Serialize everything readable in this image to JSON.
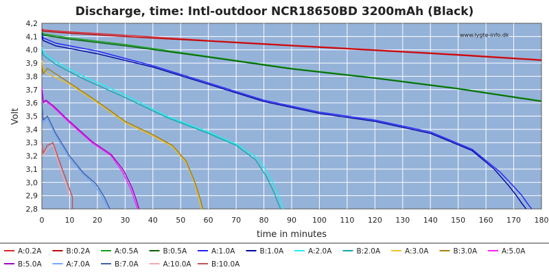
{
  "chart_data": {
    "type": "line",
    "title": "Discharge, time: Intl-outdoor NCR18650BD 3200mAh (Black)",
    "xlabel": "time in minutes",
    "ylabel": "Volt",
    "watermark": "www.lygte-info.dk",
    "xlim": [
      0,
      180
    ],
    "ylim": [
      2.8,
      4.2
    ],
    "xticks": [
      0,
      10,
      20,
      30,
      40,
      50,
      60,
      70,
      80,
      90,
      100,
      110,
      120,
      130,
      140,
      150,
      160,
      170,
      180
    ],
    "yticks": [
      2.8,
      2.9,
      3.0,
      3.1,
      3.2,
      3.3,
      3.4,
      3.5,
      3.6,
      3.7,
      3.8,
      3.9,
      4.0,
      4.1,
      4.2
    ],
    "ytick_labels": [
      "2,8",
      "2,9",
      "3,0",
      "3,1",
      "3,2",
      "3,3",
      "3,4",
      "3,5",
      "3,6",
      "3,7",
      "3,8",
      "3,9",
      "4,0",
      "4,1",
      "4,2"
    ],
    "grid": true,
    "plot_background": "#95b2d9",
    "legend_position": "bottom",
    "series": [
      {
        "name": "A:0.2A",
        "color": "#e02020",
        "x": [
          0,
          0.5,
          10,
          30,
          60,
          90,
          120,
          150,
          180
        ],
        "y": [
          4.16,
          4.15,
          4.135,
          4.11,
          4.07,
          4.035,
          4.0,
          3.965,
          3.925
        ]
      },
      {
        "name": "B:0.2A",
        "color": "#c00000",
        "x": [
          0,
          0.5,
          10,
          30,
          60,
          90,
          120,
          150,
          180
        ],
        "y": [
          4.15,
          4.14,
          4.125,
          4.1,
          4.065,
          4.03,
          3.995,
          3.96,
          3.92
        ]
      },
      {
        "name": "A:0.5A",
        "color": "#10a010",
        "x": [
          0,
          0.5,
          10,
          30,
          60,
          90,
          120,
          150,
          180
        ],
        "y": [
          4.14,
          4.12,
          4.09,
          4.04,
          3.95,
          3.86,
          3.79,
          3.71,
          3.615
        ]
      },
      {
        "name": "B:0.5A",
        "color": "#006000",
        "x": [
          0,
          0.5,
          10,
          30,
          60,
          90,
          120,
          150,
          180
        ],
        "y": [
          4.13,
          4.11,
          4.08,
          4.03,
          3.945,
          3.855,
          3.785,
          3.705,
          3.61
        ]
      },
      {
        "name": "A:1.0A",
        "color": "#2020ff",
        "x": [
          0,
          0.5,
          5,
          20,
          40,
          60,
          80,
          100,
          120,
          140,
          155,
          165,
          170,
          173,
          175,
          176.5
        ],
        "y": [
          4.12,
          4.09,
          4.05,
          3.99,
          3.88,
          3.75,
          3.62,
          3.53,
          3.47,
          3.38,
          3.25,
          3.08,
          2.97,
          2.9,
          2.84,
          2.8
        ]
      },
      {
        "name": "B:1.0A",
        "color": "#0000a0",
        "x": [
          0,
          0.5,
          5,
          20,
          40,
          60,
          80,
          100,
          120,
          140,
          155,
          163,
          168,
          171,
          173,
          174.5
        ],
        "y": [
          4.1,
          4.07,
          4.03,
          3.97,
          3.87,
          3.74,
          3.61,
          3.52,
          3.46,
          3.37,
          3.24,
          3.1,
          2.98,
          2.9,
          2.84,
          2.8
        ]
      },
      {
        "name": "A:2.0A",
        "color": "#20f0f0",
        "x": [
          0,
          0.5,
          5,
          15,
          30,
          45,
          60,
          70,
          78,
          82,
          84.5,
          86,
          87
        ],
        "y": [
          4.02,
          3.98,
          3.91,
          3.8,
          3.66,
          3.5,
          3.38,
          3.29,
          3.18,
          3.05,
          2.94,
          2.86,
          2.8
        ]
      },
      {
        "name": "B:2.0A",
        "color": "#10a8a8",
        "x": [
          0,
          0.5,
          5,
          15,
          30,
          45,
          60,
          70,
          77,
          81,
          83.5,
          85,
          86
        ],
        "y": [
          4.0,
          3.96,
          3.89,
          3.78,
          3.64,
          3.49,
          3.37,
          3.28,
          3.17,
          3.04,
          2.93,
          2.85,
          2.8
        ]
      },
      {
        "name": "A:3.0A",
        "color": "#f0c020",
        "x": [
          0,
          0.5,
          2,
          10,
          20,
          30,
          40,
          47,
          52,
          55,
          56.5,
          57.5
        ],
        "y": [
          3.92,
          3.85,
          3.82,
          3.74,
          3.6,
          3.45,
          3.35,
          3.27,
          3.15,
          3.0,
          2.88,
          2.8
        ]
      },
      {
        "name": "B:3.0A",
        "color": "#a08010",
        "x": [
          0,
          0.5,
          2,
          10,
          20,
          30,
          40,
          47,
          52,
          55,
          57,
          58
        ],
        "y": [
          3.88,
          3.82,
          3.86,
          3.75,
          3.61,
          3.46,
          3.36,
          3.28,
          3.16,
          3.01,
          2.88,
          2.8
        ]
      },
      {
        "name": "A:5.0A",
        "color": "#ff20ff",
        "x": [
          0,
          0.5,
          1.5,
          4,
          10,
          18,
          25,
          29,
          32,
          33.5,
          34.5
        ],
        "y": [
          3.72,
          3.62,
          3.61,
          3.57,
          3.45,
          3.3,
          3.2,
          3.08,
          2.95,
          2.86,
          2.8
        ]
      },
      {
        "name": "B:5.0A",
        "color": "#a000c0",
        "x": [
          0,
          0.5,
          1.5,
          4,
          10,
          18,
          25,
          29.5,
          32.5,
          34,
          35
        ],
        "y": [
          3.7,
          3.6,
          3.62,
          3.58,
          3.46,
          3.31,
          3.21,
          3.09,
          2.96,
          2.87,
          2.8
        ]
      },
      {
        "name": "A:7.0A",
        "color": "#70a8ff",
        "x": [
          0,
          0.5,
          2,
          5,
          10,
          15,
          19,
          22,
          24
        ],
        "y": [
          3.58,
          3.45,
          3.48,
          3.35,
          3.18,
          3.06,
          2.98,
          2.88,
          2.8
        ]
      },
      {
        "name": "B:7.0A",
        "color": "#4060a0",
        "x": [
          0,
          0.5,
          2,
          5,
          10,
          15,
          19.5,
          22.5,
          24.5
        ],
        "y": [
          3.6,
          3.47,
          3.5,
          3.37,
          3.2,
          3.07,
          2.99,
          2.89,
          2.8
        ]
      },
      {
        "name": "A:10.0A",
        "color": "#f0a8a8",
        "x": [
          0,
          0.5,
          2,
          4,
          7,
          9,
          10
        ],
        "y": [
          3.28,
          3.2,
          3.25,
          3.28,
          3.08,
          2.96,
          2.9
        ]
      },
      {
        "name": "B:10.0A",
        "color": "#c05050",
        "x": [
          0,
          0.5,
          2,
          4,
          7,
          10,
          11,
          11
        ],
        "y": [
          3.3,
          3.22,
          3.28,
          3.3,
          3.12,
          2.95,
          2.89,
          2.8
        ]
      }
    ]
  }
}
